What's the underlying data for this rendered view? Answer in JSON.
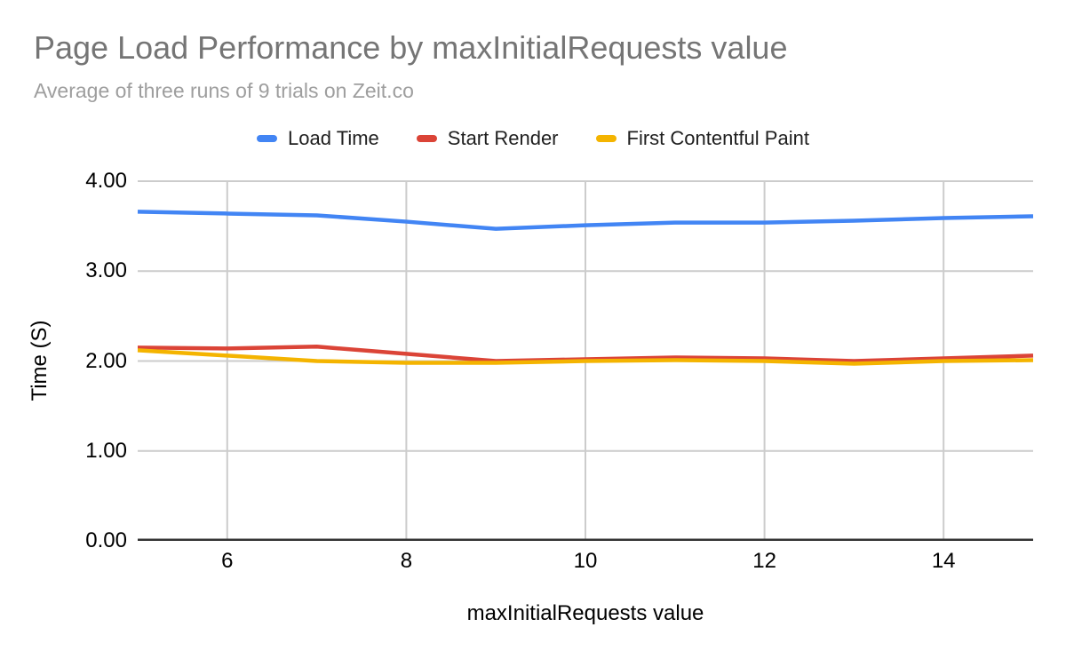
{
  "chart_data": {
    "type": "line",
    "title": "Page Load Performance by maxInitialRequests value",
    "subtitle": "Average of three runs of 9 trials on Zeit.co",
    "xlabel": "maxInitialRequests value",
    "ylabel": "Time (S)",
    "xlim": [
      5,
      15
    ],
    "ylim": [
      0,
      4
    ],
    "grid": true,
    "legend_position": "top",
    "x": [
      5,
      6,
      7,
      8,
      9,
      10,
      11,
      12,
      13,
      14,
      15
    ],
    "xticks": [
      {
        "value": 6,
        "label": "6"
      },
      {
        "value": 8,
        "label": "8"
      },
      {
        "value": 10,
        "label": "10"
      },
      {
        "value": 12,
        "label": "12"
      },
      {
        "value": 14,
        "label": "14"
      }
    ],
    "yticks": [
      {
        "value": 0,
        "label": "0.00"
      },
      {
        "value": 1,
        "label": "1.00"
      },
      {
        "value": 2,
        "label": "2.00"
      },
      {
        "value": 3,
        "label": "3.00"
      },
      {
        "value": 4,
        "label": "4.00"
      }
    ],
    "series": [
      {
        "name": "Load Time",
        "color": "#4285F4",
        "values": [
          3.66,
          3.64,
          3.62,
          3.55,
          3.47,
          3.51,
          3.54,
          3.54,
          3.56,
          3.59,
          3.61
        ]
      },
      {
        "name": "Start Render",
        "color": "#DB4437",
        "values": [
          2.15,
          2.14,
          2.16,
          2.08,
          2.0,
          2.02,
          2.04,
          2.03,
          2.0,
          2.03,
          2.06
        ]
      },
      {
        "name": "First Contentful Paint",
        "color": "#F4B400",
        "values": [
          2.12,
          2.06,
          2.0,
          1.98,
          1.98,
          2.0,
          2.01,
          2.0,
          1.97,
          2.0,
          2.01
        ]
      }
    ]
  },
  "colors": {
    "gridline": "#cccccc",
    "axis_line": "#333333",
    "title_text": "#757575",
    "subtitle_text": "#9e9e9e"
  }
}
